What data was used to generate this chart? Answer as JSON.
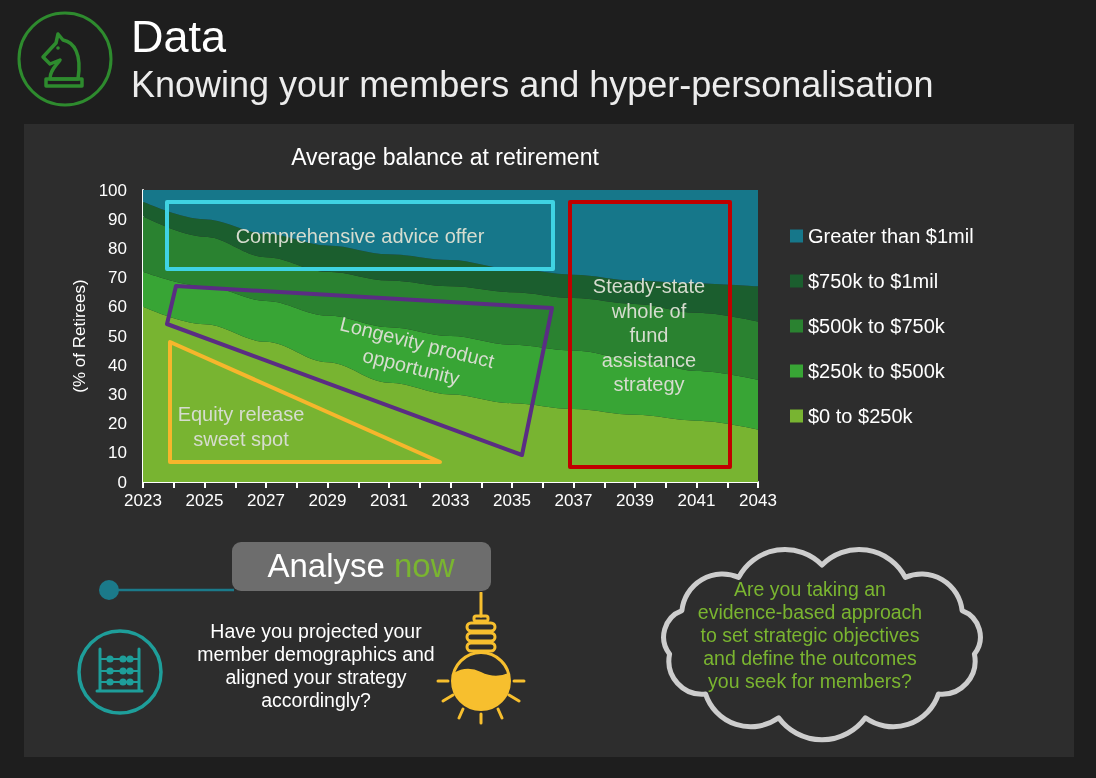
{
  "chart_data": {
    "type": "area",
    "title": "Average balance at retirement",
    "ylabel": "(% of Retirees)",
    "x": [
      2023,
      2025,
      2027,
      2029,
      2031,
      2033,
      2035,
      2037,
      2039,
      2041,
      2043
    ],
    "series": [
      {
        "name": "$0 to $250k",
        "color": "#78b431",
        "values": [
          60,
          54,
          48,
          41,
          34,
          30,
          27,
          25,
          23,
          21,
          18
        ]
      },
      {
        "name": "$250k to $500k",
        "color": "#38a535",
        "values": [
          12,
          13,
          14,
          16,
          19,
          20,
          20,
          20,
          19,
          17,
          17
        ]
      },
      {
        "name": "$500k to $750k",
        "color": "#2a8230",
        "values": [
          19,
          17,
          15,
          15,
          16,
          17,
          18,
          18,
          19,
          20,
          20
        ]
      },
      {
        "name": "$750k to $1mil",
        "color": "#1b5e2e",
        "values": [
          5,
          6,
          8,
          9,
          9,
          9,
          8,
          8,
          8,
          10,
          12
        ]
      },
      {
        "name": "Greater than $1mil",
        "color": "#16778a",
        "values": [
          4,
          10,
          15,
          19,
          22,
          24,
          27,
          29,
          31,
          32,
          33
        ]
      }
    ],
    "stacked": true,
    "xlim": [
      2023,
      2043
    ],
    "xticks": [
      2023,
      {
        "value": 2024,
        "label": null
      },
      2025,
      {
        "value": 2026,
        "label": null
      },
      2027,
      {
        "value": 2028,
        "label": null
      },
      2029,
      {
        "value": 2030,
        "label": null
      },
      2031,
      {
        "value": 2032,
        "label": null
      },
      2033,
      {
        "value": 2034,
        "label": null
      },
      2035,
      {
        "value": 2036,
        "label": null
      },
      2037,
      {
        "value": 2038,
        "label": null
      },
      2039,
      {
        "value": 2040,
        "label": null
      },
      2041,
      {
        "value": 2042,
        "label": null
      },
      2043
    ],
    "ylim": [
      0,
      100
    ],
    "yticks": [
      0,
      10,
      20,
      30,
      40,
      50,
      60,
      70,
      80,
      90,
      100
    ],
    "grid": false,
    "legend": "right",
    "annotations": [
      "Data",
      "Knowing your members and hyper-personalisation",
      "Comprehensive advice offer",
      "Longevity product opportunity",
      "Equity release sweet spot",
      "Steady-state whole of fund assistance strategy",
      "Analyse now",
      "Have you projected your member demographics and aligned your strategy accordingly?",
      "Are you taking an evidence-based approach to set strategic objectives and define the outcomes you seek for members?"
    ]
  }
}
